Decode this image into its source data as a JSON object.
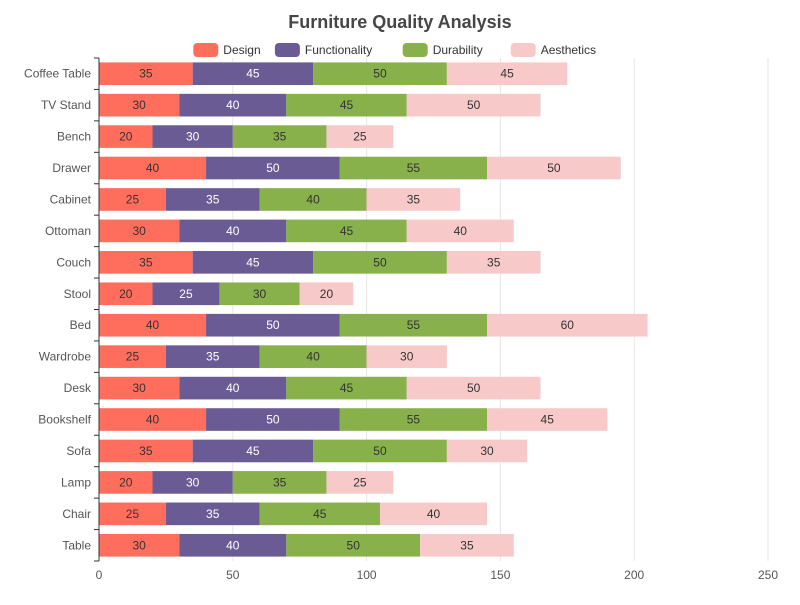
{
  "chart_data": {
    "type": "bar",
    "orientation": "horizontal",
    "stacked": true,
    "title": "Furniture Quality Analysis",
    "categories": [
      "Table",
      "Chair",
      "Lamp",
      "Sofa",
      "Bookshelf",
      "Desk",
      "Wardrobe",
      "Bed",
      "Stool",
      "Couch",
      "Ottoman",
      "Cabinet",
      "Drawer",
      "Bench",
      "TV Stand",
      "Coffee Table"
    ],
    "series": [
      {
        "name": "Design",
        "color": "#ff6e5d",
        "values": [
          30,
          25,
          20,
          35,
          40,
          30,
          25,
          40,
          20,
          35,
          30,
          25,
          40,
          20,
          30,
          35
        ]
      },
      {
        "name": "Functionality",
        "color": "#6b5b95",
        "values": [
          40,
          35,
          30,
          45,
          50,
          40,
          35,
          50,
          25,
          45,
          40,
          35,
          50,
          30,
          40,
          45
        ]
      },
      {
        "name": "Durability",
        "color": "#88b04b",
        "values": [
          50,
          45,
          35,
          50,
          55,
          45,
          40,
          55,
          30,
          50,
          45,
          40,
          55,
          35,
          45,
          50
        ]
      },
      {
        "name": "Aesthetics",
        "color": "#f7cac9",
        "values": [
          35,
          40,
          25,
          30,
          45,
          50,
          30,
          60,
          20,
          35,
          40,
          35,
          50,
          25,
          50,
          45
        ]
      }
    ],
    "xlim": [
      0,
      250
    ],
    "xticks": [
      0,
      50,
      100,
      150,
      200,
      250
    ],
    "grid": "vertical",
    "legend": "top-center",
    "data_labels": true
  }
}
